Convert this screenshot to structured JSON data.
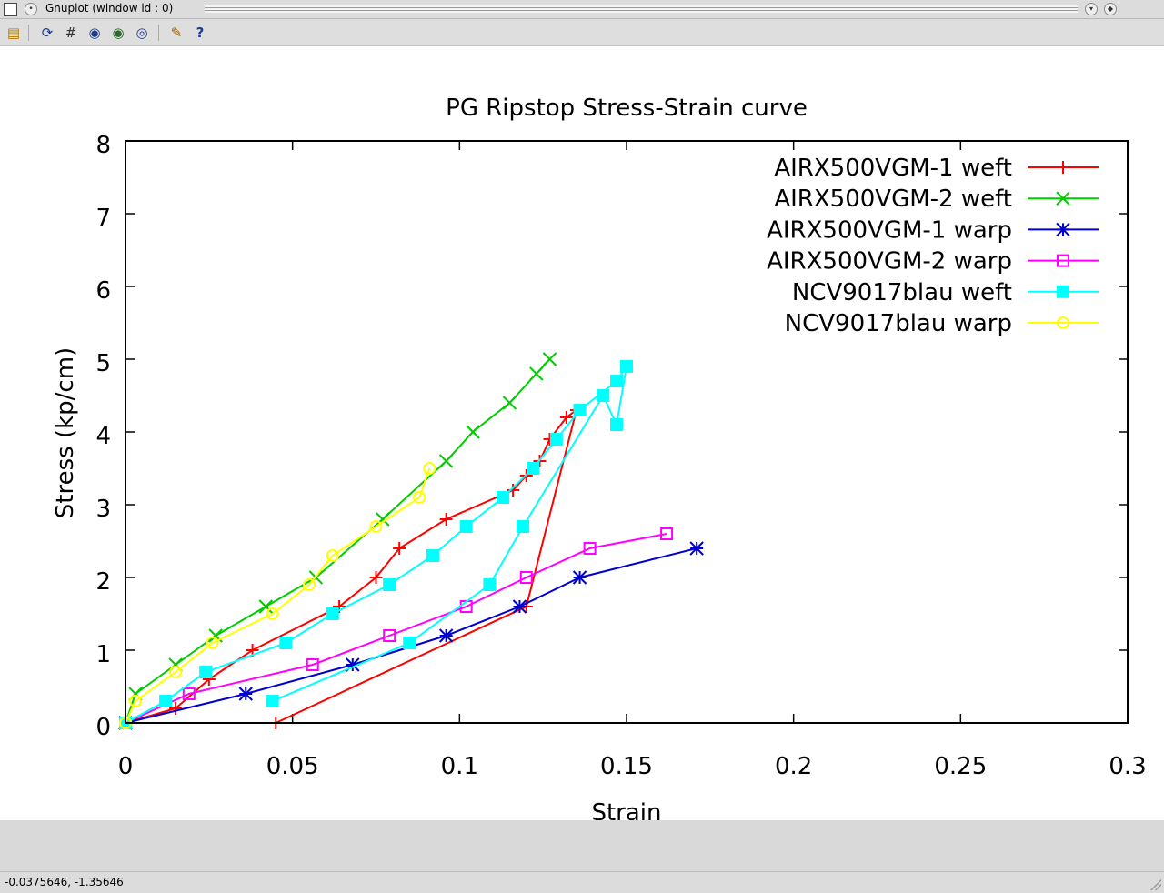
{
  "window": {
    "title": "Gnuplot (window id : 0)",
    "status_coords": "-0.0375646, -1.35646"
  },
  "toolbar": {
    "items": [
      "export-icon",
      "replot-icon",
      "grid-icon",
      "zoom-previous-icon",
      "zoom-next-icon",
      "autoscale-icon",
      "options-icon",
      "help-icon"
    ]
  },
  "chart_data": {
    "type": "line",
    "title": "PG Ripstop Stress-Strain curve",
    "xlabel": "Strain",
    "ylabel": "Stress (kp/cm)",
    "xlim": [
      0,
      0.3
    ],
    "ylim": [
      0,
      8
    ],
    "xticks": [
      "0",
      "0.05",
      "0.1",
      "0.15",
      "0.2",
      "0.25",
      "0.3"
    ],
    "yticks": [
      "0",
      "1",
      "2",
      "3",
      "4",
      "5",
      "6",
      "7",
      "8"
    ],
    "grid": false,
    "legend_position": "top-right",
    "series": [
      {
        "name": "AIRX500VGM-1 weft",
        "color": "#ff0000",
        "marker": "plus",
        "x": [
          0.045,
          0.12,
          0.135,
          0.132,
          0.127,
          0.124,
          0.12,
          0.116,
          0.096,
          0.082,
          0.075,
          0.064,
          0.038,
          0.025,
          0.015,
          0
        ],
        "y": [
          0,
          1.6,
          4.3,
          4.2,
          3.9,
          3.6,
          3.4,
          3.2,
          2.8,
          2.4,
          2.0,
          1.6,
          1.0,
          0.6,
          0.2,
          0
        ]
      },
      {
        "name": "AIRX500VGM-2 weft",
        "color": "#00cc00",
        "marker": "cross",
        "x": [
          0,
          0.003,
          0.015,
          0.027,
          0.042,
          0.057,
          0.077,
          0.096,
          0.104,
          0.115,
          0.123,
          0.127
        ],
        "y": [
          0,
          0.4,
          0.8,
          1.2,
          1.6,
          2.0,
          2.8,
          3.6,
          4.0,
          4.4,
          4.8,
          5.0
        ]
      },
      {
        "name": "AIRX500VGM-1 warp",
        "color": "#0000cc",
        "marker": "star",
        "x": [
          0,
          0.036,
          0.068,
          0.096,
          0.118,
          0.136,
          0.171
        ],
        "y": [
          0,
          0.4,
          0.8,
          1.2,
          1.6,
          2.0,
          2.4
        ]
      },
      {
        "name": "AIRX500VGM-2 warp",
        "color": "#ff00ff",
        "marker": "box",
        "x": [
          0,
          0.019,
          0.056,
          0.079,
          0.102,
          0.12,
          0.139,
          0.162
        ],
        "y": [
          0,
          0.4,
          0.8,
          1.2,
          1.6,
          2.0,
          2.4,
          2.6
        ]
      },
      {
        "name": "NCV9017blau weft",
        "color": "#00ffff",
        "marker": "filled-box",
        "x": [
          0,
          0.012,
          0.024,
          0.048,
          0.062,
          0.079,
          0.092,
          0.102,
          0.113,
          0.122,
          0.129,
          0.136,
          0.147,
          0.15,
          0.147,
          0.143,
          0.119,
          0.109,
          0.085,
          0.044
        ],
        "y": [
          0,
          0.3,
          0.7,
          1.1,
          1.5,
          1.9,
          2.3,
          2.7,
          3.1,
          3.5,
          3.9,
          4.3,
          4.7,
          4.9,
          4.1,
          4.5,
          2.7,
          1.9,
          1.1,
          0.3
        ]
      },
      {
        "name": "NCV9017blau warp",
        "color": "#ffff00",
        "marker": "circle",
        "x": [
          0,
          0.003,
          0.015,
          0.026,
          0.044,
          0.055,
          0.062,
          0.075,
          0.088,
          0.091
        ],
        "y": [
          0,
          0.3,
          0.7,
          1.1,
          1.5,
          1.9,
          2.3,
          2.7,
          3.1,
          3.5
        ]
      }
    ]
  }
}
